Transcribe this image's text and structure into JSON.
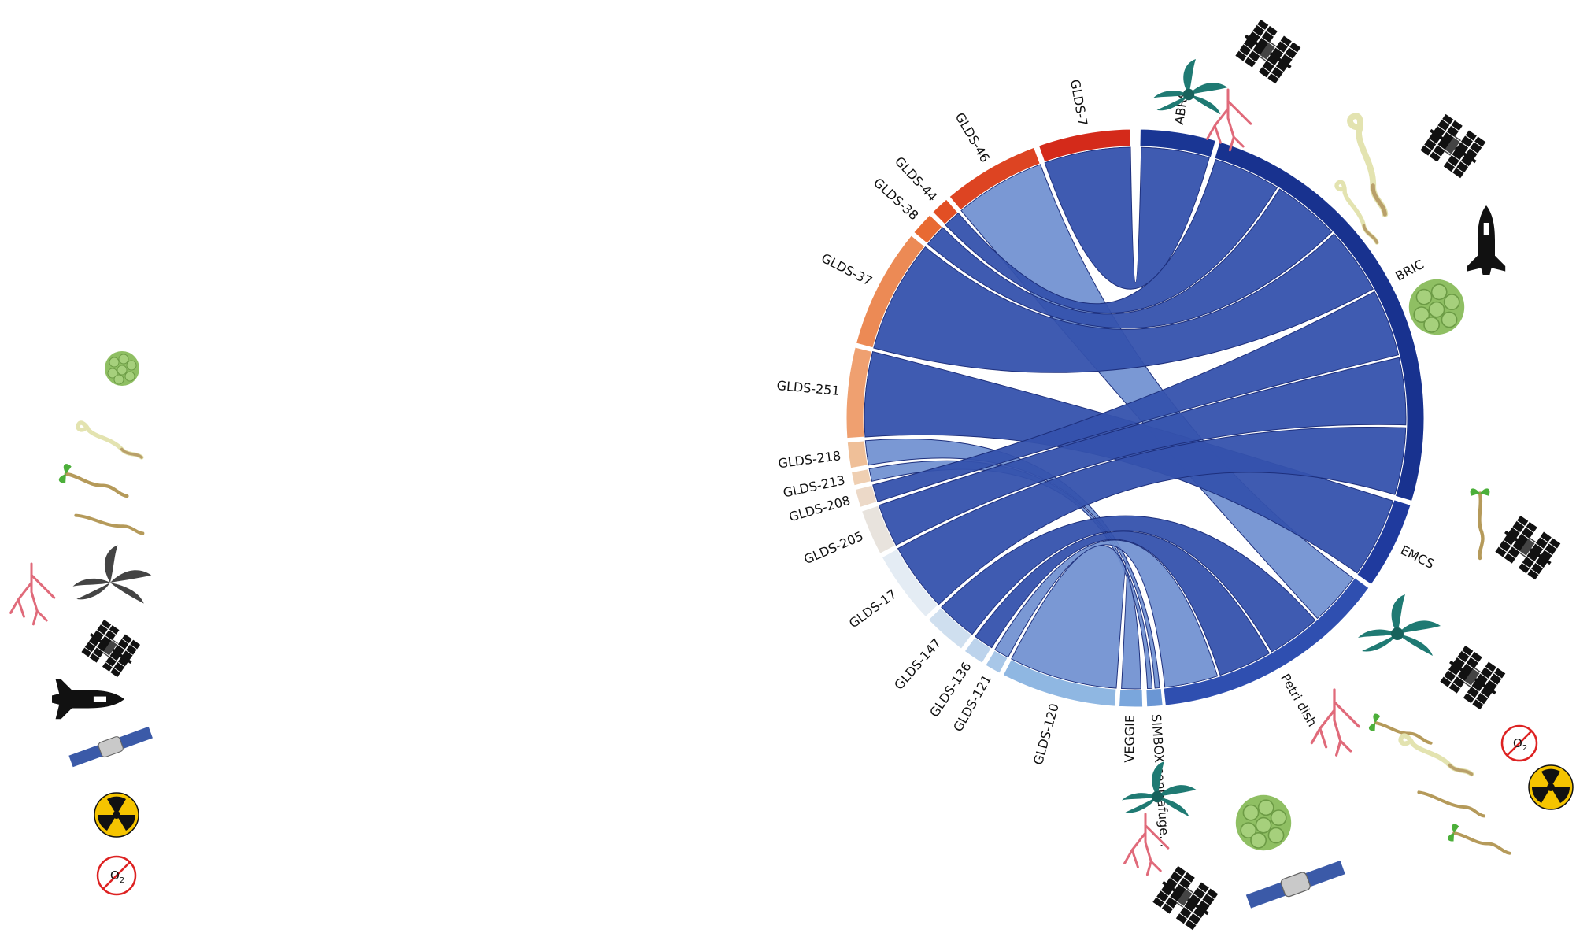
{
  "diagram": {
    "type": "chord",
    "groups": [
      {
        "label": "GLDS-7",
        "side": "dataset",
        "color": "#d42a1a"
      },
      {
        "label": "GLDS-46",
        "side": "dataset",
        "color": "#dd4422"
      },
      {
        "label": "GLDS-44",
        "side": "dataset",
        "color": "#e24f24"
      },
      {
        "label": "GLDS-38",
        "side": "dataset",
        "color": "#e86a32"
      },
      {
        "label": "GLDS-37",
        "side": "dataset",
        "color": "#ec8a55"
      },
      {
        "label": "GLDS-251",
        "side": "dataset",
        "color": "#efa070"
      },
      {
        "label": "GLDS-218",
        "side": "dataset",
        "color": "#efbf98"
      },
      {
        "label": "GLDS-213",
        "side": "dataset",
        "color": "#efcfb2"
      },
      {
        "label": "GLDS-208",
        "side": "dataset",
        "color": "#ecd9c8"
      },
      {
        "label": "GLDS-205",
        "side": "dataset",
        "color": "#e8e3dd"
      },
      {
        "label": "GLDS-17",
        "side": "dataset",
        "color": "#e4ecf4"
      },
      {
        "label": "GLDS-147",
        "side": "dataset",
        "color": "#cfdfef"
      },
      {
        "label": "GLDS-136",
        "side": "dataset",
        "color": "#bcd3ec"
      },
      {
        "label": "GLDS-121",
        "side": "dataset",
        "color": "#a8c7e8"
      },
      {
        "label": "GLDS-120",
        "side": "dataset",
        "color": "#8fb7e2"
      },
      {
        "label": "VEGGIE",
        "side": "hardware",
        "color": "#7aa6dc"
      },
      {
        "label": "SIMBOX centrafuge...",
        "side": "hardware",
        "color": "#6a96d4"
      },
      {
        "label": "Petri dish",
        "side": "hardware",
        "color": "#2f4fb0"
      },
      {
        "label": "EMCS",
        "side": "hardware",
        "color": "#1f3a9e"
      },
      {
        "label": "BRIC",
        "side": "hardware",
        "color": "#18328f"
      },
      {
        "label": "ABRS",
        "side": "hardware",
        "color": "#1a3694"
      }
    ],
    "chords": [
      {
        "from": "GLDS-7",
        "to": "ABRS"
      },
      {
        "from": "GLDS-46",
        "to": "Petri dish"
      },
      {
        "from": "GLDS-44",
        "to": "BRIC"
      },
      {
        "from": "GLDS-38",
        "to": "BRIC"
      },
      {
        "from": "GLDS-37",
        "to": "BRIC"
      },
      {
        "from": "GLDS-251",
        "to": "EMCS"
      },
      {
        "from": "GLDS-218",
        "to": "SIMBOX centrafuge..."
      },
      {
        "from": "GLDS-213",
        "to": "SIMBOX centrafuge..."
      },
      {
        "from": "GLDS-208",
        "to": "BRIC"
      },
      {
        "from": "GLDS-205",
        "to": "BRIC"
      },
      {
        "from": "GLDS-17",
        "to": "BRIC"
      },
      {
        "from": "GLDS-147",
        "to": "Petri dish"
      },
      {
        "from": "GLDS-136",
        "to": "Petri dish"
      },
      {
        "from": "GLDS-121",
        "to": "Petri dish"
      },
      {
        "from": "GLDS-120",
        "to": "VEGGIE"
      }
    ],
    "chord_color": "#3552ad",
    "chord_color_light": "#6f8fd0"
  },
  "legend_icons": [
    "callus-icon",
    "etiolated-seedling-icon",
    "seedling-icon",
    "root-icon",
    "root-system-icon",
    "rosette-plant-icon",
    "space-station-icon",
    "space-shuttle-icon",
    "satellite-icon",
    "radiation-icon",
    "no-oxygen-icon"
  ],
  "o2_label": "O",
  "o2_subscript": "2"
}
